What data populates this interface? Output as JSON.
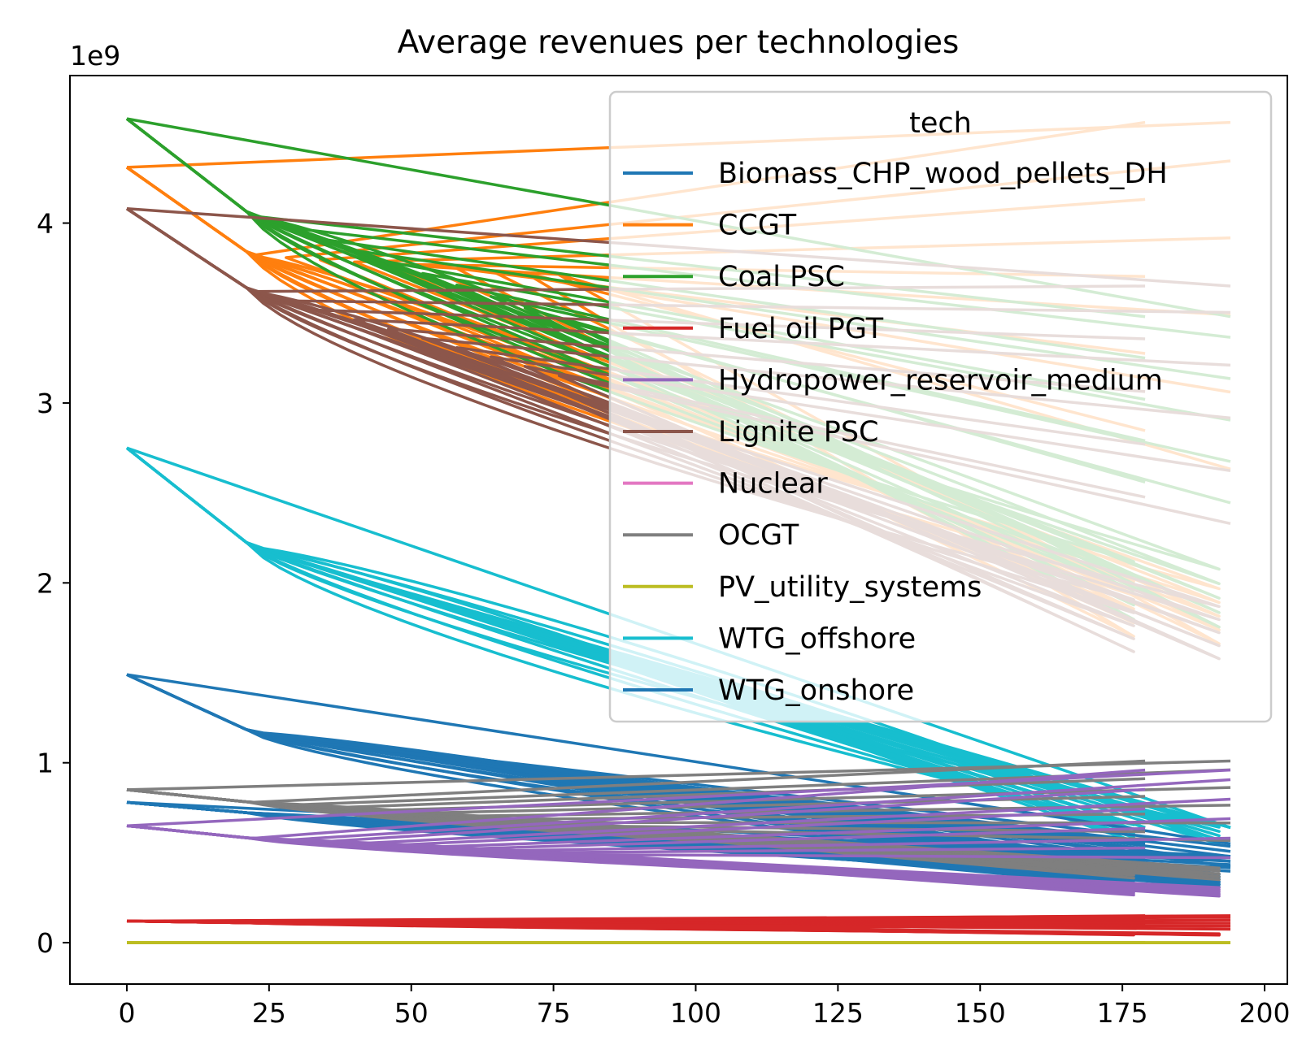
{
  "chart_data": {
    "type": "line",
    "title": "Average revenues per technologies",
    "xlabel": "",
    "ylabel": "",
    "y_offset_label": "1e9",
    "xlim": [
      -10,
      204
    ],
    "ylim": [
      -0.23,
      4.82
    ],
    "x_ticks": [
      0,
      25,
      50,
      75,
      100,
      125,
      150,
      175,
      200
    ],
    "y_ticks": [
      0,
      1,
      2,
      3,
      4
    ],
    "grid": false,
    "legend": {
      "title": "tech",
      "placement": "top-right",
      "entries": [
        {
          "name": "Biomass_CHP_wood_pellets_DH",
          "color": "#1f77b4"
        },
        {
          "name": "CCGT",
          "color": "#ff7f0e"
        },
        {
          "name": "Coal PSC",
          "color": "#2ca02c"
        },
        {
          "name": "Fuel oil PGT",
          "color": "#d62728"
        },
        {
          "name": "Hydropower_reservoir_medium",
          "color": "#9467bd"
        },
        {
          "name": "Lignite PSC",
          "color": "#8c564b"
        },
        {
          "name": "Nuclear",
          "color": "#e377c2"
        },
        {
          "name": "OCGT",
          "color": "#7f7f7f"
        },
        {
          "name": "PV_utility_systems",
          "color": "#bcbd22"
        },
        {
          "name": "WTG_offshore",
          "color": "#17becf"
        },
        {
          "name": "WTG_onshore",
          "color": "#1f77b4"
        }
      ]
    },
    "series": [
      {
        "name": "CCGT",
        "color": "#ff7f0e",
        "x_max": 194,
        "alt_end": 179,
        "y_start": 4.31,
        "y_knee": 3.82,
        "y_end": 1.99,
        "y_high": 4.56,
        "y_mid": 3.7
      },
      {
        "name": "Coal PSC",
        "color": "#2ca02c",
        "x_max": 194,
        "alt_end": 179,
        "y_start": 4.58,
        "y_knee": 4.04,
        "y_end": 2.1,
        "y_high": 3.48,
        "y_mid": 3.4
      },
      {
        "name": "Lignite PSC",
        "color": "#8c564b",
        "x_max": 194,
        "alt_end": 179,
        "y_start": 4.08,
        "y_knee": 3.62,
        "y_end": 1.89,
        "y_high": 3.65,
        "y_mid": 3.1
      },
      {
        "name": "WTG_offshore",
        "color": "#17becf",
        "x_max": 194,
        "alt_end": 179,
        "y_start": 2.75,
        "y_knee": 2.2,
        "y_end": 0.64,
        "y_high": 0.64,
        "y_mid": 1.6
      },
      {
        "name": "WTG_onshore",
        "color": "#1f77b4",
        "x_max": 194,
        "alt_end": 179,
        "y_start": 1.49,
        "y_knee": 1.17,
        "y_end": 0.38,
        "y_high": 0.55,
        "y_mid": 0.9
      },
      {
        "name": "Biomass_CHP_wood_pellets_DH",
        "color": "#1f77b4",
        "x_max": 194,
        "alt_end": 179,
        "y_start": 0.78,
        "y_knee": 0.72,
        "y_end": 0.37,
        "y_high": 0.48,
        "y_mid": 0.6
      },
      {
        "name": "OCGT",
        "color": "#7f7f7f",
        "x_max": 194,
        "alt_end": 179,
        "y_start": 0.85,
        "y_knee": 0.78,
        "y_end": 0.42,
        "y_high": 1.01,
        "y_mid": 0.62
      },
      {
        "name": "Hydropower_reservoir_medium",
        "color": "#9467bd",
        "x_max": 194,
        "alt_end": 179,
        "y_start": 0.65,
        "y_knee": 0.58,
        "y_end": 0.31,
        "y_high": 0.96,
        "y_mid": 0.48
      },
      {
        "name": "Fuel oil PGT",
        "color": "#d62728",
        "x_max": 194,
        "alt_end": 179,
        "y_start": 0.12,
        "y_knee": 0.11,
        "y_end": 0.05,
        "y_high": 0.15,
        "y_mid": 0.1
      },
      {
        "name": "PV_utility_systems",
        "color": "#bcbd22",
        "x_max": 194,
        "alt_end": 179,
        "y_start": 0.0,
        "y_knee": 0.0,
        "y_end": 0.0,
        "y_high": 0.0,
        "y_mid": 0.0
      }
    ]
  }
}
